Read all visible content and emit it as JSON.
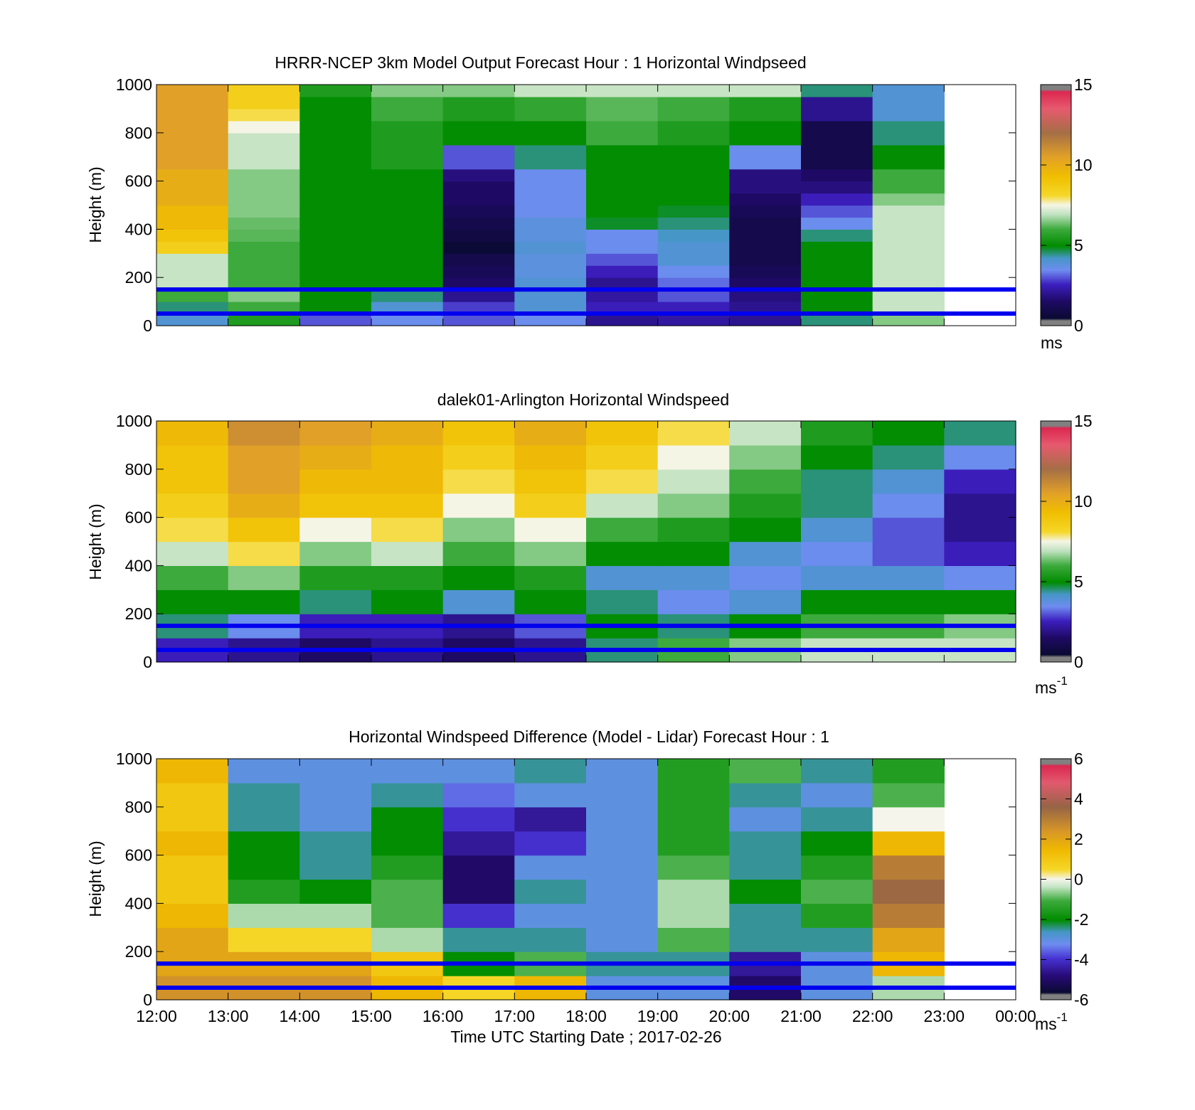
{
  "chart_data": [
    {
      "type": "heatmap",
      "title": "HRRR-NCEP 3km Model Output   Forecast Hour : 1 Horizontal Windpseed",
      "ylabel": "Height (m)",
      "ylim": [
        0,
        1000
      ],
      "yticks": [
        "0",
        "200",
        "400",
        "600",
        "800",
        "1000"
      ],
      "x_ticks": [
        "12:00",
        "13:00",
        "14:00",
        "15:00",
        "16:00",
        "17:00",
        "18:00",
        "19:00",
        "20:00",
        "21:00",
        "22:00",
        "23:00",
        "00:00"
      ],
      "show_x_tick_labels": false,
      "colorbar": {
        "ticks": [
          "0",
          "5",
          "10",
          "15"
        ],
        "range": [
          0,
          15
        ],
        "unit": "ms",
        "unit_sup": "",
        "scale": "speed"
      },
      "reference_lines_m": [
        50,
        150
      ],
      "x": [
        "12:00",
        "13:00",
        "14:00",
        "15:00",
        "16:00",
        "17:00",
        "18:00",
        "19:00",
        "20:00",
        "21:00",
        "22:00"
      ],
      "y_levels_m": [
        0,
        50,
        100,
        150,
        200,
        250,
        300,
        350,
        400,
        450,
        500,
        550,
        600,
        650,
        700,
        750,
        800,
        850,
        900,
        950,
        1000
      ],
      "values_note": "values in m/s, rows = height levels low to high",
      "z": [
        [
          4.0,
          5.5,
          3.0,
          3.5,
          3.0,
          3.5,
          2.0,
          2.2,
          2.0,
          4.5,
          6.5
        ],
        [
          4.5,
          6.0,
          5.0,
          4.0,
          2.8,
          4.0,
          2.5,
          2.5,
          2.0,
          5.0,
          7.0
        ],
        [
          6.0,
          6.5,
          5.0,
          4.5,
          2.0,
          4.0,
          2.2,
          3.0,
          1.8,
          5.0,
          7.0
        ],
        [
          7.0,
          6.0,
          5.0,
          5.0,
          1.5,
          4.0,
          2.0,
          3.2,
          1.5,
          5.0,
          7.0
        ],
        [
          7.0,
          6.0,
          5.0,
          5.0,
          1.2,
          3.8,
          2.5,
          3.5,
          1.2,
          5.0,
          7.0
        ],
        [
          7.0,
          6.0,
          5.0,
          5.0,
          1.0,
          3.8,
          3.0,
          4.0,
          1.0,
          5.0,
          7.0
        ],
        [
          8.5,
          6.0,
          5.0,
          5.0,
          0.5,
          4.0,
          3.5,
          4.0,
          1.0,
          5.0,
          7.0
        ],
        [
          9.0,
          6.2,
          5.0,
          5.0,
          0.8,
          3.8,
          3.5,
          4.2,
          1.0,
          4.5,
          7.0
        ],
        [
          9.5,
          6.3,
          5.0,
          5.0,
          1.0,
          3.8,
          4.8,
          4.5,
          1.0,
          3.5,
          7.0
        ],
        [
          9.5,
          6.5,
          5.0,
          5.0,
          1.2,
          3.5,
          5.0,
          4.8,
          1.2,
          3.0,
          7.0
        ],
        [
          10.0,
          6.5,
          5.0,
          5.0,
          1.5,
          3.5,
          5.0,
          5.0,
          1.5,
          2.5,
          6.5
        ],
        [
          10.0,
          6.5,
          5.0,
          5.0,
          1.5,
          3.5,
          5.0,
          5.0,
          1.8,
          1.8,
          6.0
        ],
        [
          10.0,
          6.5,
          5.0,
          5.0,
          1.8,
          3.5,
          5.0,
          5.0,
          1.8,
          1.5,
          6.0
        ],
        [
          10.5,
          7.0,
          5.0,
          5.5,
          3.0,
          4.5,
          5.0,
          5.0,
          3.5,
          1.0,
          5.0
        ],
        [
          10.5,
          7.0,
          5.0,
          5.5,
          3.0,
          4.5,
          5.0,
          5.0,
          3.5,
          1.0,
          5.0
        ],
        [
          10.5,
          7.0,
          5.0,
          5.5,
          5.0,
          5.0,
          6.0,
          5.5,
          5.0,
          1.0,
          4.5
        ],
        [
          10.5,
          7.5,
          5.0,
          5.5,
          5.0,
          5.0,
          6.0,
          5.5,
          5.0,
          1.0,
          4.5
        ],
        [
          10.5,
          8.0,
          5.0,
          6.0,
          5.5,
          5.8,
          6.2,
          6.0,
          5.5,
          2.0,
          4.0
        ],
        [
          10.5,
          8.5,
          5.0,
          6.0,
          5.5,
          5.8,
          6.2,
          6.0,
          5.5,
          2.0,
          4.0
        ],
        [
          10.5,
          8.5,
          5.5,
          6.5,
          6.5,
          7.0,
          7.0,
          7.0,
          7.0,
          4.5,
          4.0
        ]
      ]
    },
    {
      "type": "heatmap",
      "title": "dalek01-Arlington  Horizontal Windspeed",
      "ylabel": "Height (m)",
      "ylim": [
        0,
        1000
      ],
      "yticks": [
        "0",
        "200",
        "400",
        "600",
        "800",
        "1000"
      ],
      "x_ticks": [
        "12:00",
        "13:00",
        "14:00",
        "15:00",
        "16:00",
        "17:00",
        "18:00",
        "19:00",
        "20:00",
        "21:00",
        "22:00",
        "23:00",
        "00:00"
      ],
      "show_x_tick_labels": false,
      "colorbar": {
        "ticks": [
          "0",
          "5",
          "10",
          "15"
        ],
        "range": [
          0,
          15
        ],
        "unit": "ms",
        "unit_sup": "-1",
        "scale": "speed"
      },
      "reference_lines_m": [
        50,
        150
      ],
      "x": [
        "12:00",
        "13:00",
        "14:00",
        "15:00",
        "16:00",
        "17:00",
        "18:00",
        "19:00",
        "20:00",
        "21:00",
        "22:00",
        "23:00"
      ],
      "y_levels_m": [
        0,
        100,
        200,
        300,
        400,
        500,
        600,
        700,
        800,
        900,
        1000
      ],
      "values_note": "hourly-averaged estimates in m/s, rows = height levels low to high",
      "z": [
        [
          2.5,
          2.0,
          1.5,
          2.0,
          1.5,
          2.0,
          4.5,
          6.0,
          6.5,
          7.0,
          7.0,
          7.0
        ],
        [
          4.5,
          3.5,
          2.5,
          2.5,
          2.0,
          3.0,
          5.0,
          4.5,
          5.0,
          6.0,
          6.0,
          6.5
        ],
        [
          5.0,
          5.0,
          4.5,
          5.0,
          4.0,
          5.0,
          4.5,
          3.5,
          4.0,
          5.0,
          5.0,
          5.0
        ],
        [
          6.0,
          6.5,
          5.5,
          5.5,
          5.0,
          5.5,
          4.0,
          4.0,
          3.5,
          4.0,
          4.0,
          3.5
        ],
        [
          7.0,
          8.0,
          6.5,
          7.0,
          6.0,
          6.5,
          5.0,
          5.0,
          4.0,
          3.5,
          3.0,
          2.5
        ],
        [
          8.0,
          9.0,
          7.5,
          8.0,
          6.5,
          7.5,
          6.0,
          5.5,
          5.0,
          4.0,
          3.0,
          2.0
        ],
        [
          8.5,
          10.0,
          9.0,
          9.0,
          7.5,
          8.5,
          7.0,
          6.5,
          5.5,
          4.5,
          3.5,
          2.0
        ],
        [
          9.0,
          10.5,
          9.5,
          9.5,
          8.0,
          9.0,
          8.0,
          7.0,
          6.0,
          4.5,
          4.0,
          2.5
        ],
        [
          9.0,
          10.5,
          10.0,
          9.5,
          8.5,
          9.5,
          8.5,
          7.5,
          6.5,
          5.0,
          4.5,
          3.5
        ],
        [
          9.5,
          11.0,
          10.5,
          10.0,
          9.0,
          10.0,
          9.0,
          8.0,
          7.0,
          5.5,
          5.0,
          4.5
        ]
      ]
    },
    {
      "type": "heatmap",
      "title": "Horizontal Windspeed Difference (Model - Lidar) Forecast Hour : 1",
      "xlabel": "Time UTC  Starting Date ; 2017-02-26",
      "ylabel": "Height (m)",
      "ylim": [
        0,
        1000
      ],
      "yticks": [
        "0",
        "200",
        "400",
        "600",
        "800",
        "1000"
      ],
      "x_ticks": [
        "12:00",
        "13:00",
        "14:00",
        "15:00",
        "16:00",
        "17:00",
        "18:00",
        "19:00",
        "20:00",
        "21:00",
        "22:00",
        "23:00",
        "00:00"
      ],
      "show_x_tick_labels": true,
      "colorbar": {
        "ticks": [
          "-6",
          "-4",
          "-2",
          "0",
          "2",
          "4",
          "6"
        ],
        "range": [
          -6,
          6
        ],
        "unit": "ms",
        "unit_sup": "-1",
        "scale": "diff"
      },
      "reference_lines_m": [
        50,
        150
      ],
      "x": [
        "12:00",
        "13:00",
        "14:00",
        "15:00",
        "16:00",
        "17:00",
        "18:00",
        "19:00",
        "20:00",
        "21:00",
        "22:00"
      ],
      "y_levels_m": [
        0,
        100,
        200,
        300,
        400,
        500,
        600,
        700,
        800,
        900,
        1000
      ],
      "values_note": "model minus lidar in m/s, rows = height levels low to high",
      "z": [
        [
          2.5,
          2.5,
          2.5,
          1.5,
          0.5,
          1.5,
          -3.0,
          -3.0,
          -5.0,
          -3.0,
          -0.5
        ],
        [
          2.0,
          2.0,
          2.0,
          1.0,
          -2.0,
          -1.0,
          -2.5,
          -2.5,
          -4.5,
          -3.0,
          1.5
        ],
        [
          2.0,
          0.5,
          0.5,
          -0.5,
          -2.5,
          -2.5,
          -3.0,
          -1.0,
          -2.5,
          -2.5,
          2.0
        ],
        [
          1.5,
          -0.5,
          -0.5,
          -1.0,
          -4.0,
          -3.0,
          -3.0,
          -0.5,
          -2.5,
          -1.5,
          3.0
        ],
        [
          1.0,
          -1.5,
          -2.0,
          -1.0,
          -5.0,
          -2.5,
          -3.0,
          -0.5,
          -2.0,
          -1.0,
          3.5
        ],
        [
          1.0,
          -2.0,
          -2.5,
          -1.5,
          -5.0,
          -3.0,
          -3.0,
          -1.0,
          -2.5,
          -1.5,
          3.0
        ],
        [
          1.5,
          -2.0,
          -2.5,
          -2.0,
          -4.5,
          -4.0,
          -3.0,
          -1.5,
          -2.5,
          -2.0,
          1.5
        ],
        [
          1.0,
          -2.5,
          -3.0,
          -2.0,
          -4.0,
          -4.5,
          -3.0,
          -1.5,
          -3.0,
          -2.5,
          0.0
        ],
        [
          1.0,
          -2.5,
          -3.0,
          -2.5,
          -3.5,
          -3.0,
          -3.0,
          -1.5,
          -2.5,
          -3.0,
          -1.0
        ],
        [
          1.5,
          -3.0,
          -3.0,
          -3.0,
          -3.0,
          -2.5,
          -3.0,
          -1.5,
          -1.0,
          -2.5,
          -1.5
        ]
      ]
    }
  ]
}
